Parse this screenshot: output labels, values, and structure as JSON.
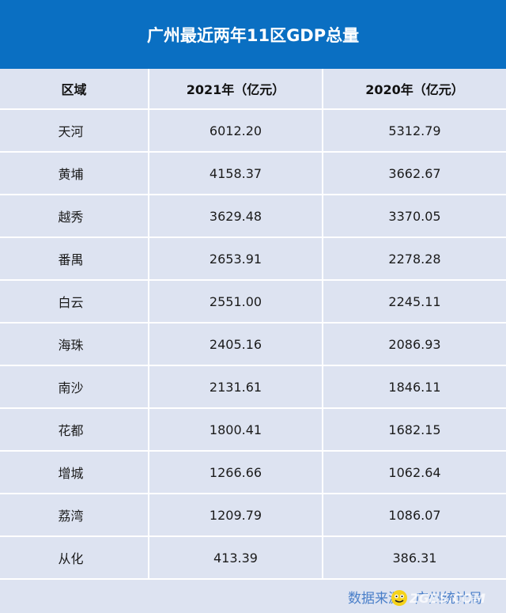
{
  "chart_data": {
    "type": "table",
    "title": "广州最近两年11区GDP总量",
    "columns": [
      "区域",
      "2021年（亿元）",
      "2020年（亿元）"
    ],
    "rows": [
      [
        "天河",
        "6012.20",
        "5312.79"
      ],
      [
        "黄埔",
        "4158.37",
        "3662.67"
      ],
      [
        "越秀",
        "3629.48",
        "3370.05"
      ],
      [
        "番禺",
        "2653.91",
        "2278.28"
      ],
      [
        "白云",
        "2551.00",
        "2245.11"
      ],
      [
        "海珠",
        "2405.16",
        "2086.93"
      ],
      [
        "南沙",
        "2131.61",
        "1846.11"
      ],
      [
        "花都",
        "1800.41",
        "1682.15"
      ],
      [
        "增城",
        "1266.66",
        "1062.64"
      ],
      [
        "荔湾",
        "1209.79",
        "1086.07"
      ],
      [
        "从化",
        "413.39",
        "386.31"
      ]
    ]
  },
  "footer": {
    "source": "数据来源：广州统计局"
  },
  "watermark": {
    "text": "ZGBS.COM"
  },
  "colors": {
    "title_bg": "#0a6fc2",
    "cell_bg": "#dde3f1",
    "source_text": "#4a7fc9"
  }
}
